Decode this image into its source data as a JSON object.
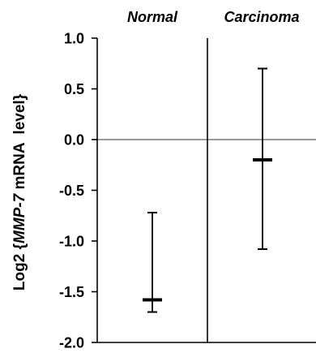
{
  "chart_data": {
    "type": "error-bar",
    "categories": [
      "Normal",
      "Carcinoma"
    ],
    "series": [
      {
        "values": [
          -1.58,
          -0.2
        ],
        "lower": [
          -1.7,
          -1.08
        ],
        "upper": [
          -0.72,
          0.7
        ]
      }
    ],
    "ylabel": {
      "prefix": "Log2 {",
      "gene": "MMP-7",
      "suffix": " mRNA  level}"
    },
    "ylim": [
      -2.0,
      1.0
    ],
    "yticks": [
      1.0,
      0.5,
      0.0,
      -0.5,
      -1.0,
      -1.5,
      -2.0
    ],
    "ytick_labels": [
      "1.0",
      "0.5",
      "0.0",
      "-0.5",
      "-1.0",
      "-1.5",
      "-2.0"
    ],
    "reference_line": 0.0,
    "colors": {
      "reference_line": "#999999",
      "marks": "#000000"
    }
  }
}
